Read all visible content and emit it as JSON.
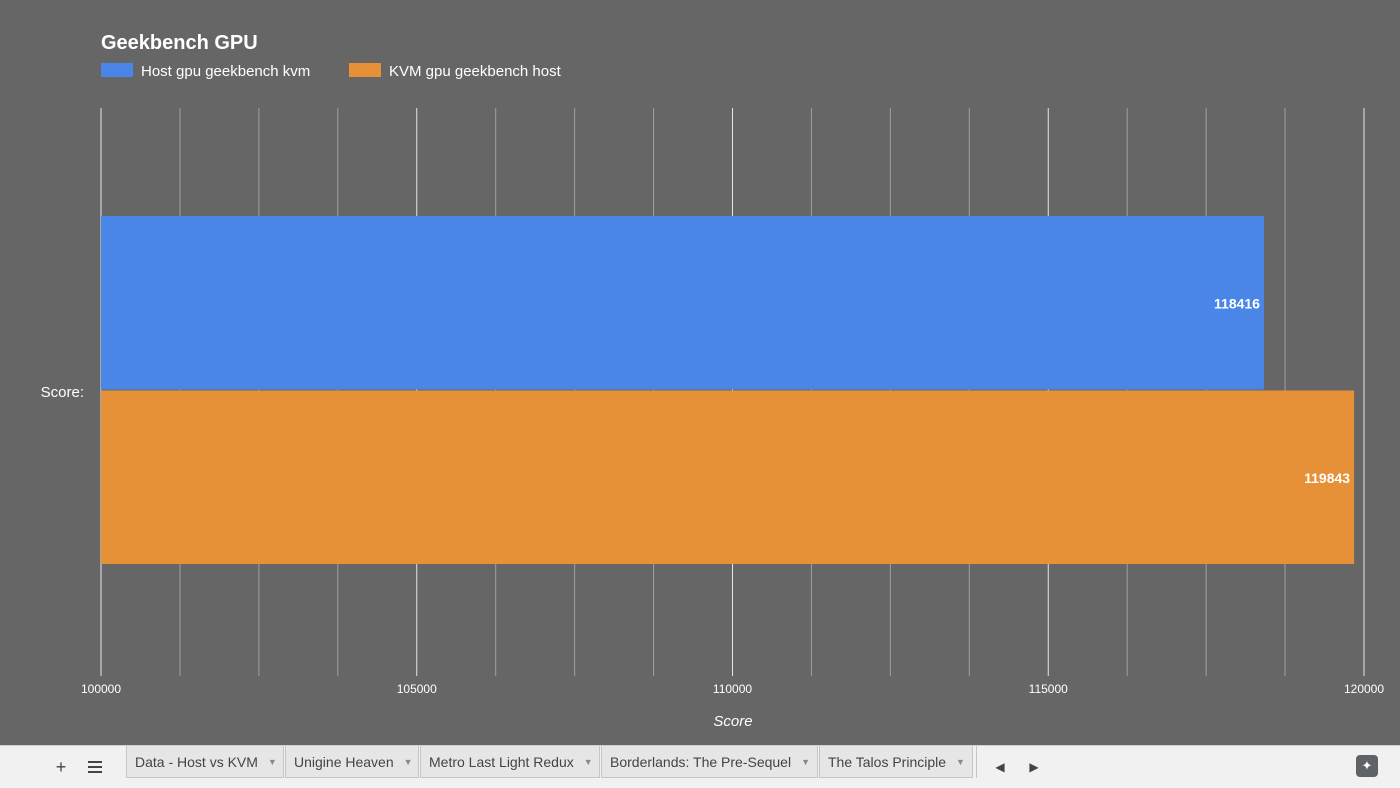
{
  "chart_data": {
    "type": "bar",
    "orientation": "horizontal",
    "title": "Geekbench GPU",
    "categories": [
      "Score:"
    ],
    "series": [
      {
        "name": "Host gpu geekbench kvm",
        "values": [
          118416
        ],
        "color": "#4a86e8"
      },
      {
        "name": "KVM gpu geekbench host",
        "values": [
          119843
        ],
        "color": "#e69138"
      }
    ],
    "data_labels": [
      "118416",
      "119843"
    ],
    "xlabel": "Score",
    "ylabel": "",
    "xlim": [
      100000,
      120000
    ],
    "xticks": [
      "100000",
      "105000",
      "110000",
      "115000",
      "120000"
    ],
    "major_ticks": [
      100000,
      105000,
      110000,
      115000,
      120000
    ],
    "minor_ticks": [
      101250,
      102500,
      103750,
      106250,
      107500,
      108750,
      111250,
      112500,
      113750,
      116250,
      117500,
      118750
    ],
    "grid": true,
    "legend_position": "top-left",
    "background_color": "#666666"
  },
  "tabbar": {
    "add_sheet_icon": "plus-icon",
    "all_sheets_icon": "list-icon",
    "tabs": [
      {
        "label": "Data - Host vs KVM"
      },
      {
        "label": "Unigine Heaven"
      },
      {
        "label": "Metro Last Light Redux"
      },
      {
        "label": "Borderlands: The Pre-Sequel"
      },
      {
        "label": "The Talos Principle"
      }
    ],
    "scroll_left_icon": "chevron-left-icon",
    "scroll_right_icon": "chevron-right-icon",
    "explore_icon": "explore-icon"
  }
}
